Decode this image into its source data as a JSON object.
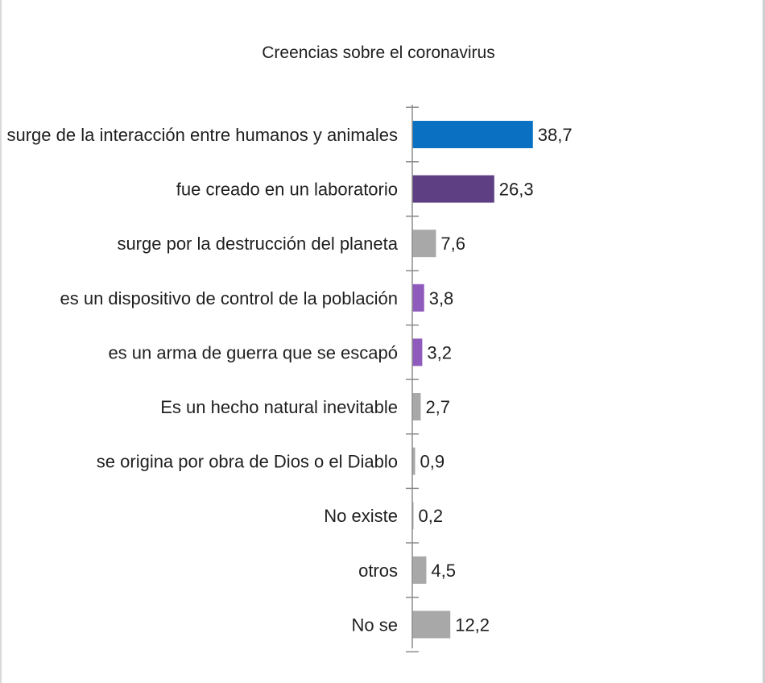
{
  "chart_data": {
    "type": "bar",
    "orientation": "horizontal",
    "title": "Creencias sobre el coronavirus",
    "xlabel": "",
    "ylabel": "",
    "grid": false,
    "legend": "none",
    "xlim": [
      0,
      40
    ],
    "categories": [
      "surge de la interacción entre humanos y animales",
      "fue creado en un laboratorio",
      "surge por la destrucción del planeta",
      "es un dispositivo de control de la población",
      "es un arma de guerra que se escapó",
      "Es un hecho natural inevitable",
      "se origina por obra de Dios o el Diablo",
      "No existe",
      "otros",
      "No se"
    ],
    "values": [
      38.7,
      26.3,
      7.6,
      3.8,
      3.2,
      2.7,
      0.9,
      0.2,
      4.5,
      12.2
    ],
    "value_labels": [
      "38,7",
      "26,3",
      "7,6",
      "3,8",
      "3,2",
      "2,7",
      "0,9",
      "0,2",
      "4,5",
      "12,2"
    ],
    "colors": [
      "#0a70c2",
      "#5e3f84",
      "#a8a8a8",
      "#8e5bbd",
      "#8e5bbd",
      "#a8a8a8",
      "#a8a8a8",
      "#a8a8a8",
      "#a8a8a8",
      "#a8a8a8"
    ],
    "axis_color": "#8c8c8c"
  }
}
